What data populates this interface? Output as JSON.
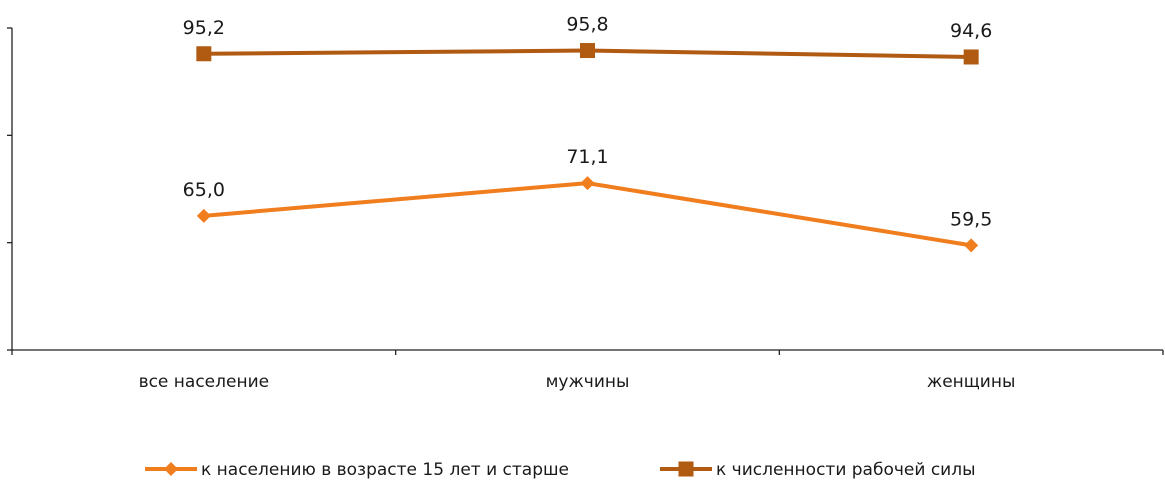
{
  "chart_data": {
    "type": "line",
    "categories": [
      "все население",
      "мужчины",
      "женщины"
    ],
    "series": [
      {
        "name": "к населению в возрасте 15 лет и старше",
        "values": [
          65.0,
          71.1,
          59.5
        ],
        "labels": [
          "65,0",
          "71,1",
          "59,5"
        ],
        "color": "#f07d1e",
        "marker": "diamond"
      },
      {
        "name": "к численности рабочей силы",
        "values": [
          95.2,
          95.8,
          94.6
        ],
        "labels": [
          "95,2",
          "95,8",
          "94,6"
        ],
        "color": "#b05a12",
        "marker": "square"
      }
    ],
    "ylim": [
      40,
      100
    ],
    "grid": false,
    "legend": "bottom",
    "title": "",
    "xlabel": "",
    "ylabel": ""
  }
}
